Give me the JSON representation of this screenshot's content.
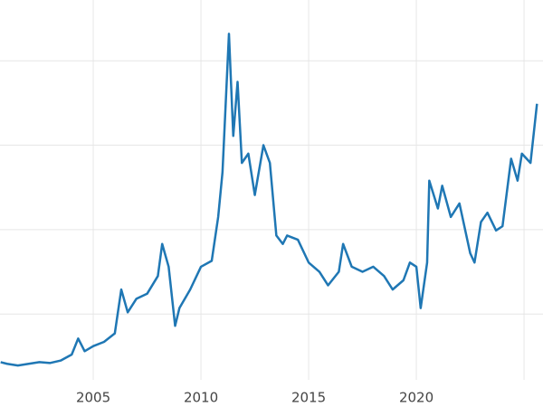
{
  "chart_data": {
    "type": "line",
    "x": [
      2000.7,
      2001.0,
      2001.5,
      2002.0,
      2002.5,
      2003.0,
      2003.5,
      2004.0,
      2004.3,
      2004.6,
      2005.0,
      2005.5,
      2006.0,
      2006.3,
      2006.6,
      2007.0,
      2007.5,
      2008.0,
      2008.2,
      2008.5,
      2008.8,
      2009.0,
      2009.5,
      2010.0,
      2010.5,
      2010.8,
      2011.0,
      2011.3,
      2011.5,
      2011.7,
      2011.9,
      2012.2,
      2012.5,
      2012.9,
      2013.2,
      2013.5,
      2013.8,
      2014.0,
      2014.5,
      2015.0,
      2015.5,
      2015.9,
      2016.4,
      2016.6,
      2017.0,
      2017.5,
      2018.0,
      2018.5,
      2018.9,
      2019.4,
      2019.7,
      2020.0,
      2020.2,
      2020.5,
      2020.6,
      2021.0,
      2021.2,
      2021.6,
      2022.0,
      2022.5,
      2022.7,
      2023.0,
      2023.3,
      2023.7,
      2024.0,
      2024.4,
      2024.7,
      2024.9,
      2025.3,
      2025.6
    ],
    "values": [
      4.3,
      4.1,
      3.9,
      4.1,
      4.3,
      4.2,
      4.5,
      5.2,
      7.1,
      5.6,
      6.2,
      6.7,
      7.7,
      12.9,
      10.2,
      11.8,
      12.4,
      14.5,
      18.3,
      15.6,
      8.6,
      10.7,
      12.9,
      15.6,
      16.3,
      21.5,
      26.8,
      43.2,
      31.1,
      37.5,
      27.9,
      29.0,
      24.1,
      30.0,
      27.9,
      19.3,
      18.3,
      19.3,
      18.8,
      16.1,
      15.0,
      13.4,
      15.0,
      18.3,
      15.6,
      15.0,
      15.6,
      14.5,
      12.9,
      14.0,
      16.1,
      15.6,
      10.7,
      16.1,
      25.8,
      22.5,
      25.2,
      21.5,
      23.1,
      17.2,
      16.1,
      20.9,
      22.0,
      19.9,
      20.4,
      28.4,
      25.8,
      29.0,
      27.9,
      34.9
    ],
    "color": "#1f77b4",
    "xlim": [
      2000.67,
      2025.88
    ],
    "ylim": [
      2.2,
      47.2
    ],
    "xticks": [
      2005,
      2010,
      2015,
      2020
    ],
    "xgrid": [
      2005,
      2010,
      2015,
      2020,
      2025
    ],
    "ygrid": [
      10,
      20,
      30,
      40
    ]
  }
}
